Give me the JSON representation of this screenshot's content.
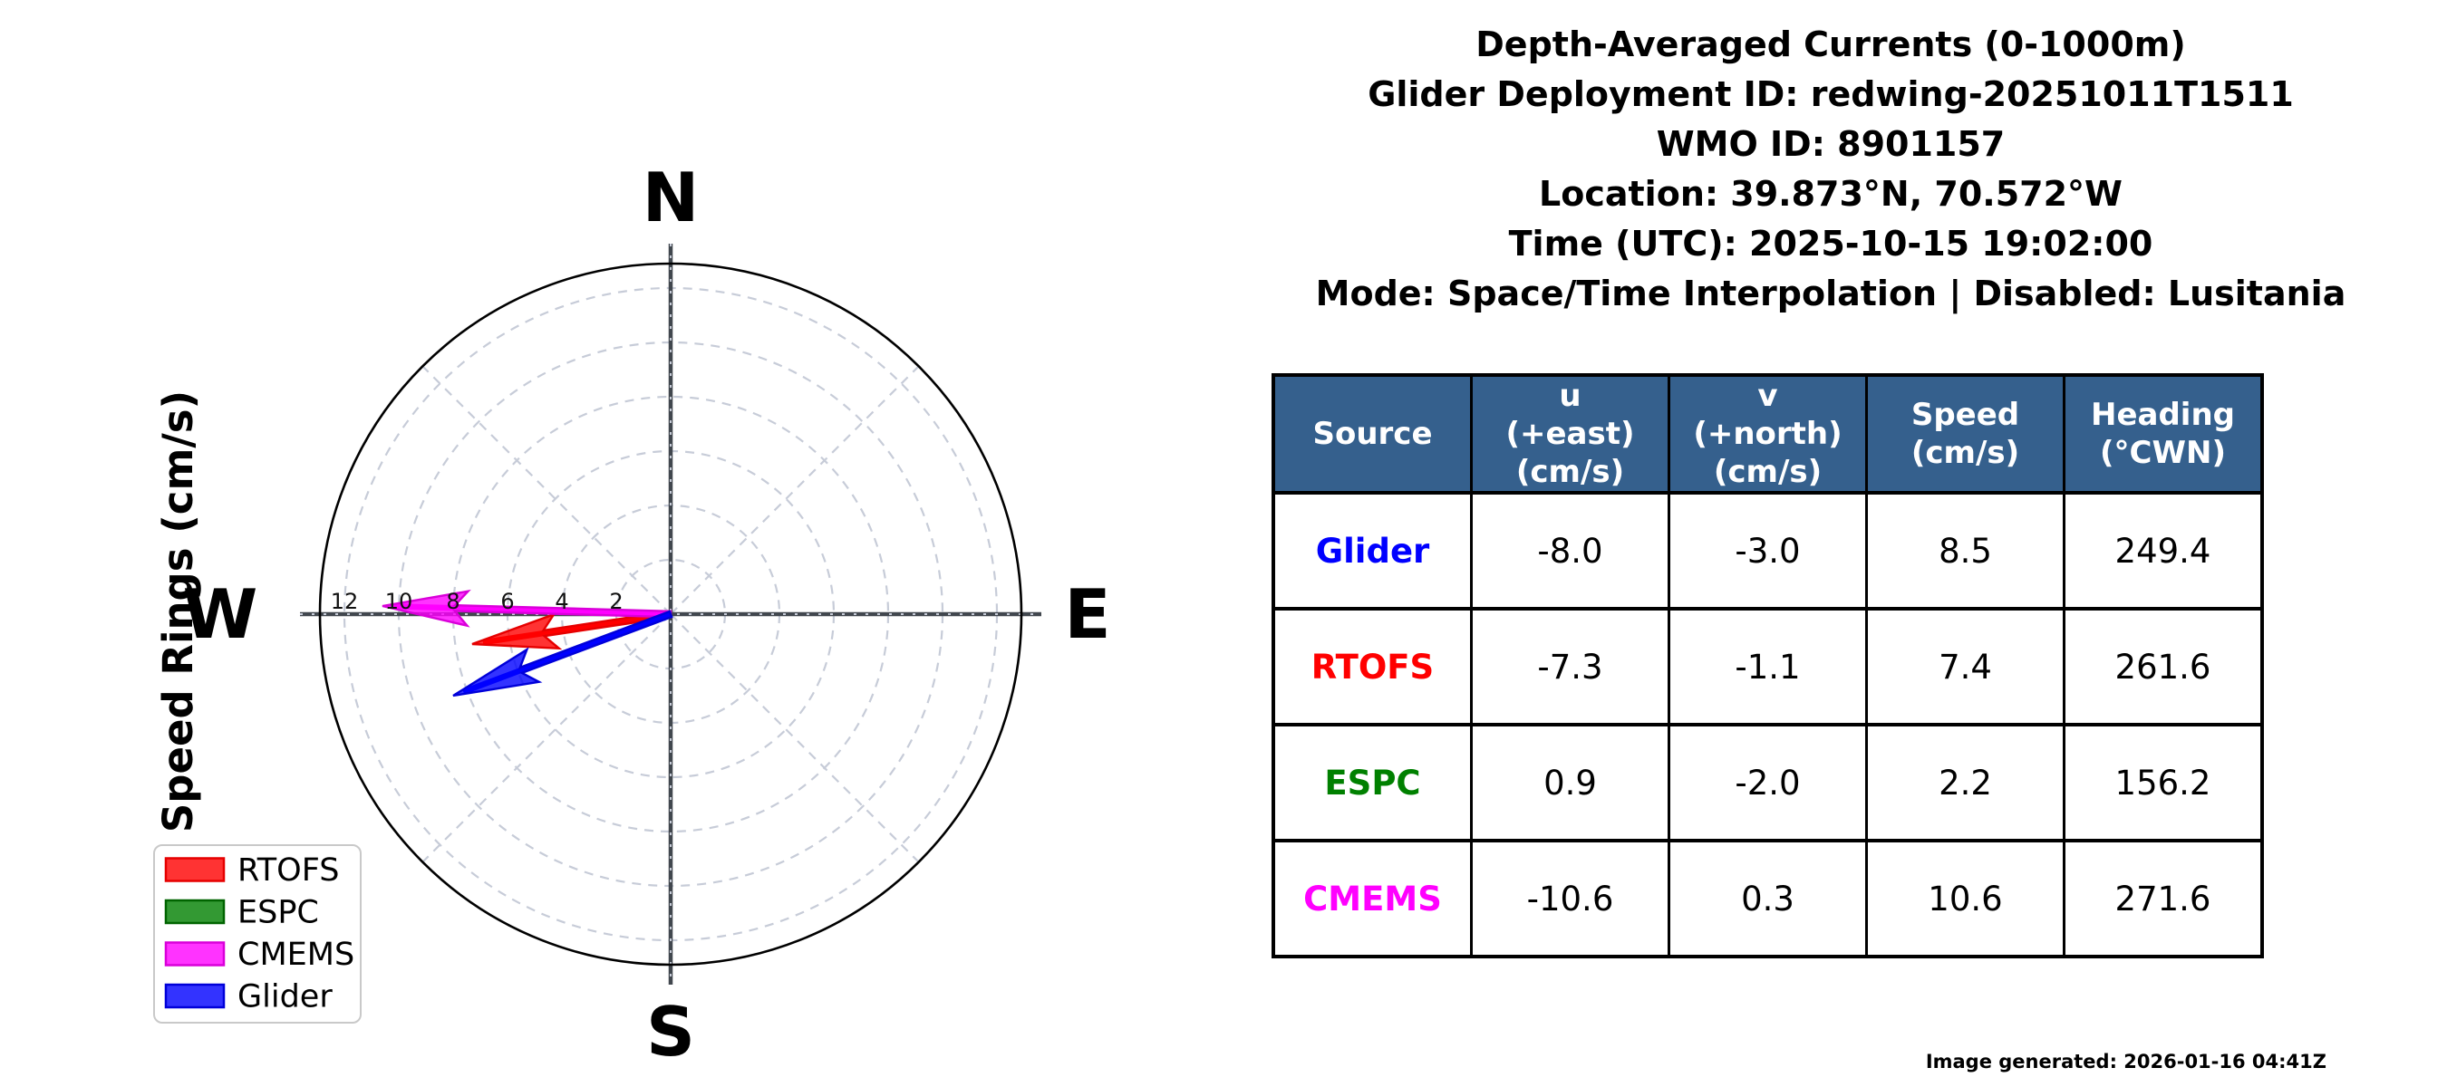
{
  "header": {
    "lines": [
      "Depth-Averaged Currents (0-1000m)",
      "Glider Deployment ID: redwing-20251011T1511",
      "WMO ID: 8901157",
      "Location: 39.873°N, 70.572°W",
      "Time (UTC): 2025-10-15 19:02:00",
      "Mode: Space/Time Interpolation | Disabled: Lusitania"
    ]
  },
  "chart_data": {
    "type": "polar-vector",
    "axis_label": "Speed Rings (cm/s)",
    "compass_labels": [
      "N",
      "E",
      "S",
      "W"
    ],
    "ring_values": [
      2,
      4,
      6,
      8,
      10,
      12
    ],
    "ring_unit": "cm/s",
    "rmax": 13,
    "series": [
      {
        "name": "RTOFS",
        "u": -7.3,
        "v": -1.1,
        "speed": 7.4,
        "heading": 261.6,
        "color": "#ff0000",
        "edge": "#e60000",
        "arrow_visible": true
      },
      {
        "name": "ESPC",
        "u": 0.9,
        "v": -2.0,
        "speed": 2.2,
        "heading": 156.2,
        "color": "#008000",
        "edge": "#006400",
        "arrow_visible": false
      },
      {
        "name": "CMEMS",
        "u": -10.6,
        "v": 0.3,
        "speed": 10.6,
        "heading": 271.6,
        "color": "#ff00ff",
        "edge": "#d900d9",
        "arrow_visible": true
      },
      {
        "name": "Glider",
        "u": -8.0,
        "v": -3.0,
        "speed": 8.5,
        "heading": 249.4,
        "color": "#0000ff",
        "edge": "#0000d9",
        "arrow_visible": true
      }
    ],
    "legend_order": [
      "RTOFS",
      "ESPC",
      "CMEMS",
      "Glider"
    ],
    "grid_color": "#c7ccd8",
    "axis_color": "#41474e",
    "outer_circle_color": "#000000"
  },
  "table": {
    "header_bg": "#35608D",
    "header_text_color": "#ffffff",
    "columns": [
      "Source",
      "u\n(+east)\n(cm/s)",
      "v\n(+north)\n(cm/s)",
      "Speed\n(cm/s)",
      "Heading\n(°CWN)"
    ],
    "rows": [
      {
        "source": "Glider",
        "u": "-8.0",
        "v": "-3.0",
        "speed": "8.5",
        "heading": "249.4"
      },
      {
        "source": "RTOFS",
        "u": "-7.3",
        "v": "-1.1",
        "speed": "7.4",
        "heading": "261.6"
      },
      {
        "source": "ESPC",
        "u": "0.9",
        "v": "-2.0",
        "speed": "2.2",
        "heading": "156.2"
      },
      {
        "source": "CMEMS",
        "u": "-10.6",
        "v": "0.3",
        "speed": "10.6",
        "heading": "271.6"
      }
    ]
  },
  "footer": {
    "generated": "Image generated: 2026-01-16 04:41Z"
  }
}
